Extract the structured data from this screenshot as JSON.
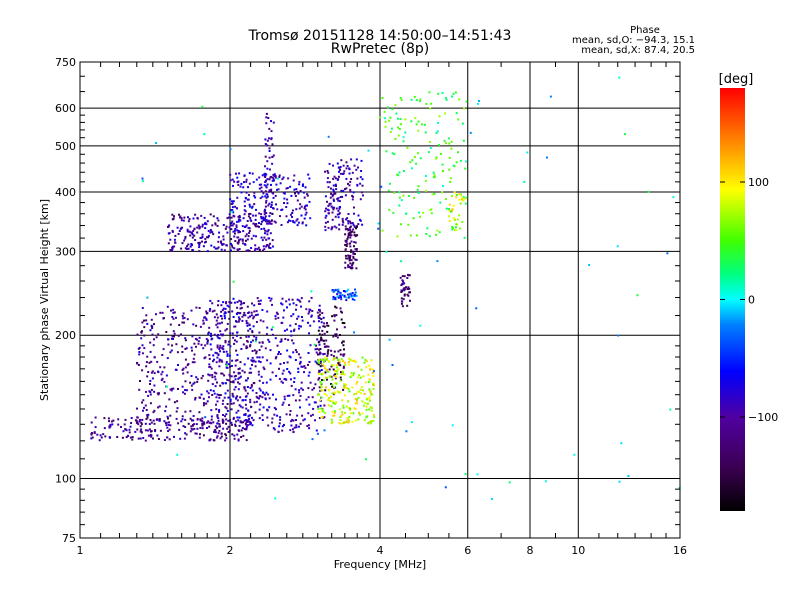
{
  "chart_data": {
    "type": "scatter",
    "title": "Tromsø 20151128 14:50:00–14:51:43",
    "subtitle": "RwPretec (8p)",
    "xlabel": "Frequency [MHz]",
    "ylabel": "Stationary phase Virtual Height [km]",
    "x_scale": "log",
    "y_scale": "log",
    "xlim": [
      1,
      16
    ],
    "ylim": [
      75,
      750
    ],
    "x_ticks": [
      1,
      2,
      4,
      6,
      8,
      10,
      16
    ],
    "x_tick_labels": [
      "1",
      "2",
      "4",
      "6",
      "8",
      "10",
      "16"
    ],
    "y_ticks": [
      75,
      100,
      200,
      300,
      400,
      500,
      600,
      750
    ],
    "y_tick_labels": [
      "75",
      "100",
      "200",
      "300",
      "400",
      "500",
      "600",
      "750"
    ],
    "grid": true,
    "stats": {
      "title": "Phase",
      "line1": "mean, sd,O: −94.3, 15.1",
      "line2": "mean, sd,X:  87.4, 20.5"
    },
    "colorbar": {
      "label": "[deg]",
      "range": [
        -180,
        180
      ],
      "ticks": [
        100,
        0,
        -100
      ],
      "tick_labels": [
        "100",
        "0",
        "−100"
      ]
    },
    "clusters": [
      {
        "desc": "F1/E low trace",
        "x": [
          1.05,
          2.2
        ],
        "y": [
          120,
          135
        ],
        "phase": -110,
        "n": 220
      },
      {
        "desc": "O-trace rise",
        "x": [
          1.3,
          2.3
        ],
        "y": [
          130,
          230
        ],
        "phase": -105,
        "n": 450
      },
      {
        "desc": "F trace low band",
        "x": [
          1.8,
          3.1
        ],
        "y": [
          125,
          240
        ],
        "phase": -90,
        "n": 500
      },
      {
        "desc": "F2 lower",
        "x": [
          1.5,
          2.4
        ],
        "y": [
          300,
          360
        ],
        "phase": -100,
        "n": 260
      },
      {
        "desc": "F2 upper",
        "x": [
          2.0,
          2.9
        ],
        "y": [
          340,
          440
        ],
        "phase": -85,
        "n": 200
      },
      {
        "desc": "vertical spike 2.4 MHz",
        "x": [
          2.35,
          2.45
        ],
        "y": [
          300,
          600
        ],
        "phase": -100,
        "n": 80
      },
      {
        "desc": "X-trace purple",
        "x": [
          3.0,
          3.4
        ],
        "y": [
          150,
          230
        ],
        "phase": -140,
        "n": 120
      },
      {
        "desc": "X-trace yellow",
        "x": [
          3.0,
          3.9
        ],
        "y": [
          130,
          180
        ],
        "phase": 85,
        "n": 250
      },
      {
        "desc": "cyan band ~240 km",
        "x": [
          3.2,
          3.6
        ],
        "y": [
          237,
          250
        ],
        "phase": -40,
        "n": 50
      },
      {
        "desc": "mixed 3.2-3.6 MHz high",
        "x": [
          3.1,
          3.7
        ],
        "y": [
          330,
          470
        ],
        "phase": -95,
        "n": 160
      },
      {
        "desc": "dense 3.5 MHz 280-340 km",
        "x": [
          3.4,
          3.6
        ],
        "y": [
          275,
          340
        ],
        "phase": -130,
        "n": 80
      },
      {
        "desc": "4.5 MHz cluster",
        "x": [
          4.4,
          4.6
        ],
        "y": [
          230,
          270
        ],
        "phase": -120,
        "n": 40
      },
      {
        "desc": "scattered 4-6 MHz",
        "x": [
          4.0,
          6.0
        ],
        "y": [
          320,
          650
        ],
        "phase": 40,
        "n": 160
      },
      {
        "desc": "yellow 5.5 MHz",
        "x": [
          5.5,
          5.9
        ],
        "y": [
          330,
          400
        ],
        "phase": 80,
        "n": 35
      },
      {
        "desc": "sparse 1.2-16 MHz",
        "x": [
          1.2,
          16
        ],
        "y": [
          90,
          700
        ],
        "phase": 0,
        "n": 70
      }
    ]
  }
}
